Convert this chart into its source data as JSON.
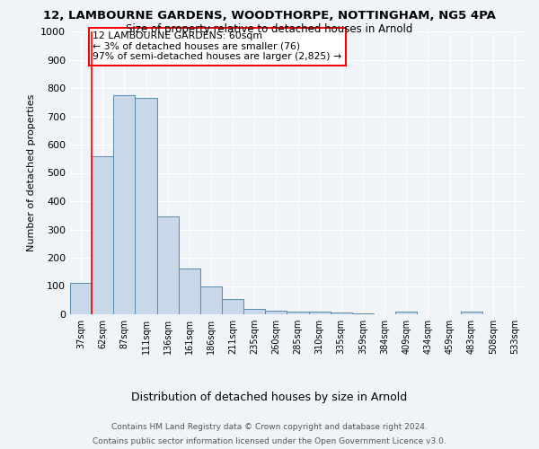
{
  "title1": "12, LAMBOURNE GARDENS, WOODTHORPE, NOTTINGHAM, NG5 4PA",
  "title2": "Size of property relative to detached houses in Arnold",
  "xlabel": "Distribution of detached houses by size in Arnold",
  "ylabel": "Number of detached properties",
  "categories": [
    "37sqm",
    "62sqm",
    "87sqm",
    "111sqm",
    "136sqm",
    "161sqm",
    "186sqm",
    "211sqm",
    "235sqm",
    "260sqm",
    "285sqm",
    "310sqm",
    "335sqm",
    "359sqm",
    "384sqm",
    "409sqm",
    "434sqm",
    "459sqm",
    "483sqm",
    "508sqm",
    "533sqm"
  ],
  "values": [
    110,
    560,
    775,
    765,
    345,
    163,
    98,
    55,
    20,
    13,
    10,
    8,
    5,
    4,
    0,
    8,
    0,
    0,
    10,
    0,
    0
  ],
  "bar_color": "#c8d8e8",
  "bar_edge_color": "#5a8ab0",
  "annotation_text": "12 LAMBOURNE GARDENS: 60sqm\n← 3% of detached houses are smaller (76)\n97% of semi-detached houses are larger (2,825) →",
  "annotation_box_color": "white",
  "annotation_box_edge": "red",
  "red_line_x": 0.5,
  "footer1": "Contains HM Land Registry data © Crown copyright and database right 2024.",
  "footer2": "Contains public sector information licensed under the Open Government Licence v3.0.",
  "ylim": [
    0,
    1000
  ],
  "yticks": [
    0,
    100,
    200,
    300,
    400,
    500,
    600,
    700,
    800,
    900,
    1000
  ],
  "bg_color": "#f0f4f8",
  "plot_bg": "#f0f4f8",
  "title1_fontsize": 9.5,
  "title2_fontsize": 8.5,
  "ylabel_fontsize": 8,
  "xlabel_fontsize": 9,
  "tick_fontsize": 7,
  "footer_fontsize": 6.5
}
